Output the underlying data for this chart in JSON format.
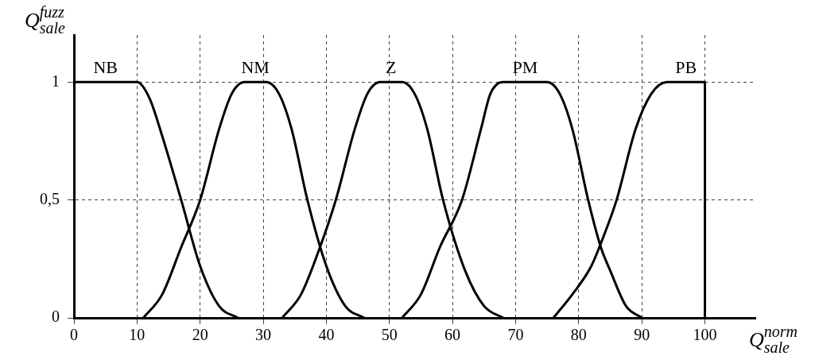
{
  "chart_data": {
    "type": "line",
    "xlabel": "Q$_{sale}$$^{norm}$",
    "ylabel": "Q$_{sale}$$^{fuzz}$",
    "xlim": [
      0,
      108
    ],
    "ylim": [
      0,
      1.2
    ],
    "xticks": [
      0,
      10,
      20,
      30,
      40,
      50,
      60,
      70,
      80,
      90,
      100
    ],
    "yticks": [
      0,
      {
        "value": 0.5,
        "label": "0,5"
      },
      1
    ],
    "grid": true,
    "legend": false,
    "marker": "none",
    "line_style": "solid",
    "series": [
      {
        "name": "NB",
        "color": "#000000",
        "x": [
          0,
          10,
          12,
          14,
          17,
          20,
          23,
          26
        ],
        "values": [
          1,
          1,
          0.93,
          0.77,
          0.5,
          0.22,
          0.05,
          0
        ]
      },
      {
        "name": "NM",
        "color": "#000000",
        "x": [
          11,
          14,
          17,
          20,
          23,
          25,
          27,
          30.5,
          32.5,
          34.5,
          37,
          40,
          43,
          46
        ],
        "values": [
          0,
          0.1,
          0.3,
          0.5,
          0.8,
          0.95,
          1,
          1,
          0.95,
          0.8,
          0.5,
          0.22,
          0.05,
          0
        ]
      },
      {
        "name": "Z",
        "color": "#000000",
        "x": [
          33,
          36,
          39,
          41.5,
          44.5,
          46.5,
          48.5,
          52,
          54,
          56,
          58.5,
          62,
          65,
          68
        ],
        "values": [
          0,
          0.1,
          0.3,
          0.5,
          0.8,
          0.95,
          1,
          1,
          0.95,
          0.8,
          0.5,
          0.2,
          0.05,
          0
        ]
      },
      {
        "name": "PM",
        "color": "#000000",
        "x": [
          52,
          55,
          58,
          61.5,
          64.5,
          66,
          68,
          75,
          77,
          79,
          81.5,
          83.5,
          85,
          87.5,
          90
        ],
        "values": [
          0,
          0.1,
          0.3,
          0.5,
          0.8,
          0.95,
          1,
          1,
          0.95,
          0.8,
          0.5,
          0.3,
          0.2,
          0.05,
          0
        ]
      },
      {
        "name": "PB",
        "color": "#000000",
        "x": [
          76,
          79,
          82,
          84,
          86,
          89,
          91.5,
          94,
          100,
          100
        ],
        "values": [
          0,
          0.1,
          0.22,
          0.35,
          0.5,
          0.8,
          0.95,
          1,
          1,
          0
        ]
      }
    ]
  }
}
